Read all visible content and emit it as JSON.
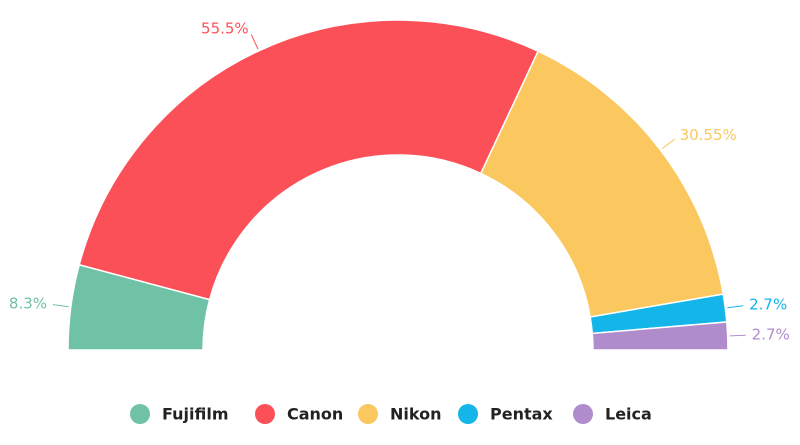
{
  "chart_data": {
    "type": "semi-donut",
    "categories": [
      "Fujifilm",
      "Canon",
      "Nikon",
      "Pentax",
      "Leica"
    ],
    "values": [
      8.3,
      55.5,
      30.55,
      2.7,
      2.7
    ],
    "value_labels": [
      "8.3%",
      "55.5%",
      "30.55%",
      "2.7%",
      "2.7%"
    ],
    "colors": [
      "#6fc2a5",
      "#fc5058",
      "#fac85f",
      "#14b5e8",
      "#b08ccc"
    ],
    "legend": "bottom"
  }
}
